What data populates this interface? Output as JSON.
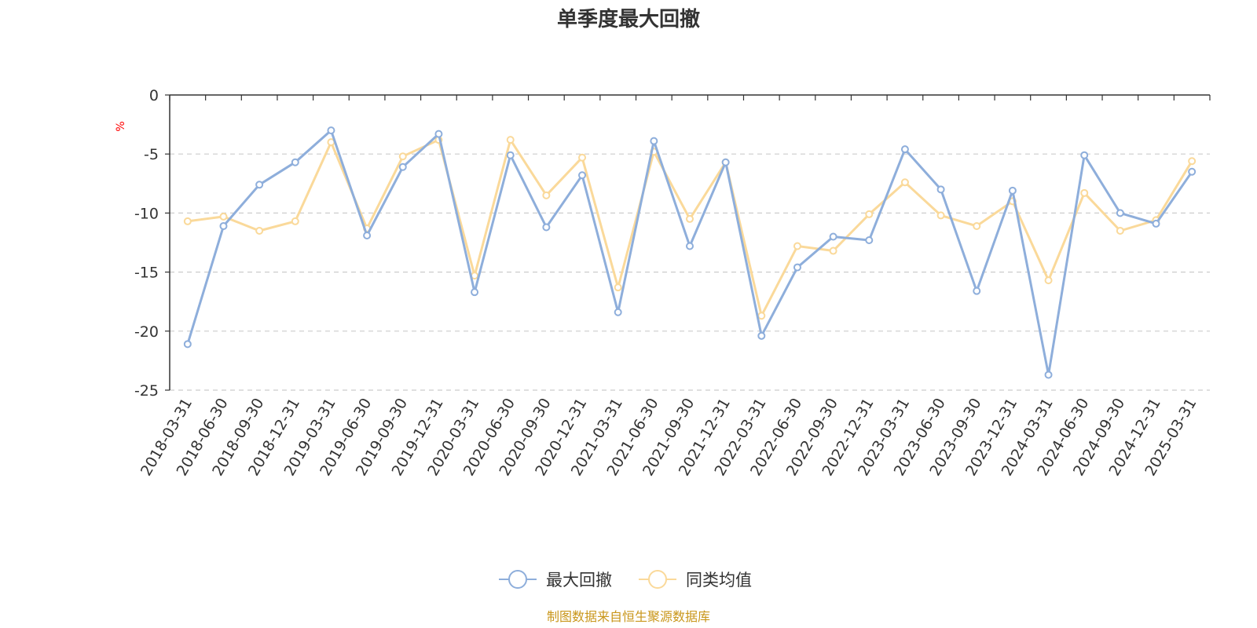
{
  "chart_data": {
    "type": "line",
    "title": "单季度最大回撤",
    "ylabel": "%",
    "ylim": [
      -25,
      0
    ],
    "yticks": [
      0,
      -5,
      -10,
      -15,
      -20,
      -25
    ],
    "ytick_labels": [
      "0",
      "-5",
      "-10",
      "-15",
      "-20",
      "-25"
    ],
    "grid": "horizontal-dashed",
    "legend_position": "bottom-center",
    "categories": [
      "2018-03-31",
      "2018-06-30",
      "2018-09-30",
      "2018-12-31",
      "2019-03-31",
      "2019-06-30",
      "2019-09-30",
      "2019-12-31",
      "2020-03-31",
      "2020-06-30",
      "2020-09-30",
      "2020-12-31",
      "2021-03-31",
      "2021-06-30",
      "2021-09-30",
      "2021-12-31",
      "2022-03-31",
      "2022-06-30",
      "2022-09-30",
      "2022-12-31",
      "2023-03-31",
      "2023-06-30",
      "2023-09-30",
      "2023-12-31",
      "2024-03-31",
      "2024-06-30",
      "2024-09-30",
      "2024-12-31",
      "2025-03-31"
    ],
    "series": [
      {
        "name": "最大回撤",
        "color": "#8eaedb",
        "values": [
          -21.1,
          -11.1,
          -7.6,
          -5.7,
          -3.0,
          -11.9,
          -6.1,
          -3.3,
          -16.7,
          -5.1,
          -11.2,
          -6.8,
          -18.4,
          -3.9,
          -12.8,
          -5.7,
          -20.4,
          -14.6,
          -12.0,
          -12.3,
          -4.6,
          -8.0,
          -16.6,
          -8.1,
          -23.7,
          -5.1,
          -10.0,
          -10.9,
          -6.5
        ]
      },
      {
        "name": "同类均值",
        "color": "#fad99a",
        "values": [
          -10.7,
          -10.3,
          -11.5,
          -10.7,
          -4.0,
          -11.3,
          -5.2,
          -3.8,
          -15.3,
          -3.8,
          -8.5,
          -5.3,
          -16.3,
          -4.8,
          -10.5,
          -5.7,
          -18.7,
          -12.8,
          -13.2,
          -10.1,
          -7.4,
          -10.2,
          -11.1,
          -9.0,
          -15.7,
          -8.3,
          -11.5,
          -10.6,
          -5.6
        ]
      }
    ],
    "source_note": "制图数据来自恒生聚源数据库"
  }
}
